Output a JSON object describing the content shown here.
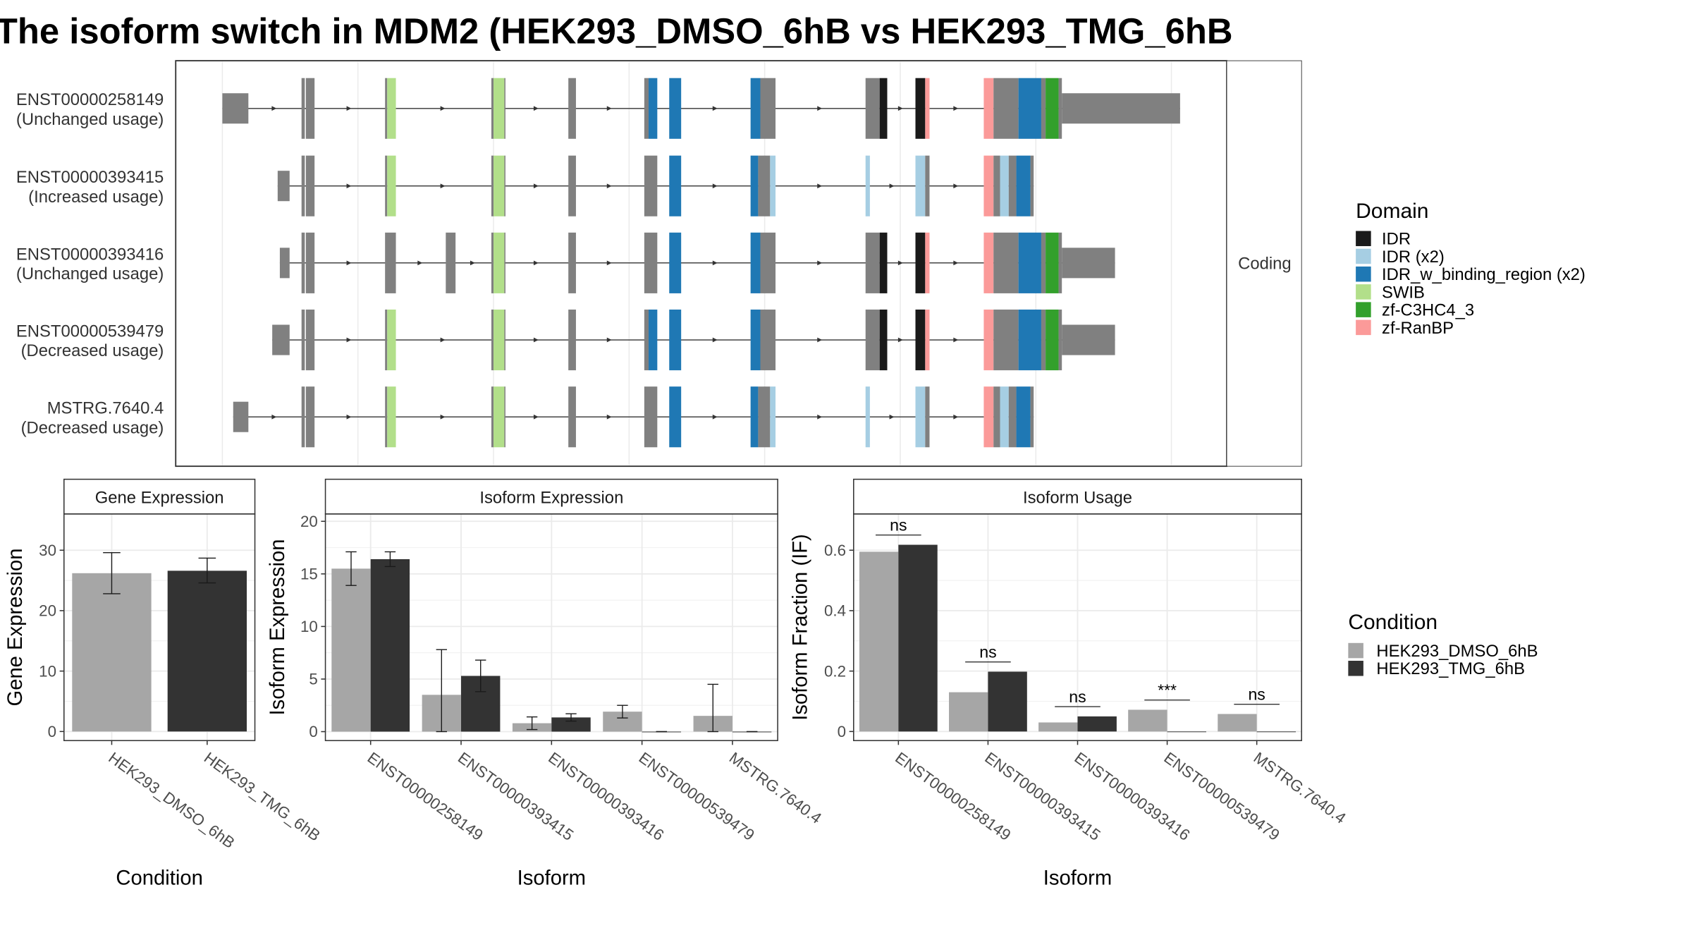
{
  "title": "The isoform switch in MDM2 (HEK293_DMSO_6hB vs HEK293_TMG_6hB",
  "colors": {
    "exon_noncoding": "#808080",
    "cond1": "#a6a6a6",
    "cond2": "#333333",
    "grid": "#ebebeb",
    "panel_border": "#333333"
  },
  "domain_legend": {
    "title": "Domain",
    "items": [
      {
        "label": "IDR",
        "color": "#1a1a1a"
      },
      {
        "label": "IDR (x2)",
        "color": "#a6cee3"
      },
      {
        "label": "IDR_w_binding_region (x2)",
        "color": "#1f78b4"
      },
      {
        "label": "SWIB",
        "color": "#b2df8a"
      },
      {
        "label": "zf-C3HC4_3",
        "color": "#33a02c"
      },
      {
        "label": "zf-RanBP",
        "color": "#fb9a99"
      }
    ]
  },
  "condition_legend": {
    "title": "Condition",
    "items": [
      {
        "label": "HEK293_DMSO_6hB",
        "color": "#a6a6a6"
      },
      {
        "label": "HEK293_TMG_6hB",
        "color": "#333333"
      }
    ]
  },
  "structure": {
    "strip_label": "Coding",
    "transcripts": [
      {
        "id": "ENST00000258149",
        "usage": "(Unchanged usage)",
        "exons": [
          [
            205,
            229,
            "n"
          ],
          [
            278,
            281,
            "n"
          ],
          [
            282,
            290,
            "n"
          ],
          [
            355,
            357,
            "n"
          ],
          [
            357,
            365,
            "S"
          ],
          [
            453,
            455,
            "n"
          ],
          [
            455,
            465,
            "S"
          ],
          [
            465,
            466,
            "n"
          ],
          [
            524,
            531,
            "n"
          ],
          [
            594,
            598,
            "n"
          ],
          [
            598,
            606,
            "B"
          ],
          [
            617,
            628,
            "B"
          ],
          [
            692,
            701,
            "B"
          ],
          [
            701,
            715,
            "n"
          ],
          [
            798,
            811,
            "n"
          ],
          [
            811,
            818,
            "I"
          ],
          [
            844,
            853,
            "I"
          ],
          [
            853,
            857,
            "R"
          ],
          [
            907,
            916,
            "R"
          ],
          [
            916,
            939,
            "n"
          ],
          [
            939,
            960,
            "B"
          ],
          [
            960,
            964,
            "n"
          ],
          [
            964,
            976,
            "G"
          ],
          [
            976,
            979,
            "n"
          ],
          [
            979,
            1088,
            "n"
          ]
        ]
      },
      {
        "id": "ENST00000393415",
        "usage": "(Increased usage)",
        "exons": [
          [
            256,
            267,
            "n"
          ],
          [
            278,
            281,
            "n"
          ],
          [
            282,
            290,
            "n"
          ],
          [
            355,
            357,
            "n"
          ],
          [
            357,
            365,
            "S"
          ],
          [
            453,
            455,
            "n"
          ],
          [
            455,
            465,
            "S"
          ],
          [
            465,
            466,
            "n"
          ],
          [
            524,
            531,
            "n"
          ],
          [
            594,
            606,
            "n"
          ],
          [
            617,
            628,
            "B"
          ],
          [
            692,
            699,
            "B"
          ],
          [
            699,
            710,
            "n"
          ],
          [
            710,
            715,
            "L"
          ],
          [
            798,
            802,
            "L"
          ],
          [
            844,
            853,
            "L"
          ],
          [
            853,
            857,
            "n"
          ],
          [
            907,
            916,
            "R"
          ],
          [
            916,
            922,
            "n"
          ],
          [
            922,
            930,
            "L"
          ],
          [
            930,
            937,
            "n"
          ],
          [
            937,
            950,
            "B"
          ],
          [
            950,
            953,
            "n"
          ]
        ]
      },
      {
        "id": "ENST00000393416",
        "usage": "(Unchanged usage)",
        "exons": [
          [
            258,
            267,
            "n"
          ],
          [
            278,
            281,
            "n"
          ],
          [
            282,
            290,
            "n"
          ],
          [
            355,
            365,
            "n"
          ],
          [
            411,
            420,
            "n"
          ],
          [
            453,
            455,
            "n"
          ],
          [
            455,
            465,
            "S"
          ],
          [
            465,
            466,
            "n"
          ],
          [
            524,
            531,
            "n"
          ],
          [
            594,
            606,
            "n"
          ],
          [
            617,
            628,
            "B"
          ],
          [
            692,
            701,
            "B"
          ],
          [
            701,
            715,
            "n"
          ],
          [
            798,
            811,
            "n"
          ],
          [
            811,
            818,
            "I"
          ],
          [
            844,
            853,
            "I"
          ],
          [
            853,
            857,
            "R"
          ],
          [
            907,
            916,
            "R"
          ],
          [
            916,
            939,
            "n"
          ],
          [
            939,
            960,
            "B"
          ],
          [
            960,
            964,
            "n"
          ],
          [
            964,
            976,
            "G"
          ],
          [
            976,
            979,
            "n"
          ],
          [
            979,
            1028,
            "n"
          ]
        ]
      },
      {
        "id": "ENST00000539479",
        "usage": "(Decreased usage)",
        "exons": [
          [
            251,
            267,
            "n"
          ],
          [
            278,
            281,
            "n"
          ],
          [
            282,
            290,
            "n"
          ],
          [
            355,
            357,
            "n"
          ],
          [
            357,
            365,
            "S"
          ],
          [
            453,
            455,
            "n"
          ],
          [
            455,
            465,
            "S"
          ],
          [
            465,
            466,
            "n"
          ],
          [
            524,
            531,
            "n"
          ],
          [
            594,
            598,
            "n"
          ],
          [
            598,
            606,
            "B"
          ],
          [
            617,
            628,
            "B"
          ],
          [
            692,
            701,
            "B"
          ],
          [
            701,
            715,
            "n"
          ],
          [
            798,
            811,
            "n"
          ],
          [
            811,
            818,
            "I"
          ],
          [
            844,
            853,
            "I"
          ],
          [
            853,
            857,
            "R"
          ],
          [
            907,
            916,
            "R"
          ],
          [
            916,
            939,
            "n"
          ],
          [
            939,
            960,
            "B"
          ],
          [
            960,
            964,
            "n"
          ],
          [
            964,
            976,
            "G"
          ],
          [
            976,
            979,
            "n"
          ],
          [
            979,
            1028,
            "n"
          ]
        ]
      },
      {
        "id": "MSTRG.7640.4",
        "usage": "(Decreased usage)",
        "exons": [
          [
            215,
            229,
            "n"
          ],
          [
            278,
            281,
            "n"
          ],
          [
            282,
            290,
            "n"
          ],
          [
            355,
            357,
            "n"
          ],
          [
            357,
            365,
            "S"
          ],
          [
            453,
            455,
            "n"
          ],
          [
            455,
            465,
            "S"
          ],
          [
            465,
            466,
            "n"
          ],
          [
            524,
            531,
            "n"
          ],
          [
            594,
            606,
            "n"
          ],
          [
            617,
            628,
            "B"
          ],
          [
            692,
            699,
            "B"
          ],
          [
            699,
            710,
            "n"
          ],
          [
            710,
            715,
            "L"
          ],
          [
            798,
            802,
            "L"
          ],
          [
            844,
            853,
            "L"
          ],
          [
            853,
            857,
            "n"
          ],
          [
            907,
            916,
            "R"
          ],
          [
            916,
            922,
            "n"
          ],
          [
            922,
            930,
            "L"
          ],
          [
            930,
            937,
            "n"
          ],
          [
            937,
            950,
            "B"
          ],
          [
            950,
            953,
            "n"
          ]
        ]
      }
    ]
  },
  "chart_data": [
    {
      "type": "bar",
      "panel": "Gene Expression",
      "categories": [
        "HEK293_DMSO_6hB",
        "HEK293_TMG_6hB"
      ],
      "values": [
        26.2,
        26.6
      ],
      "errors": [
        [
          22.8,
          29.6
        ],
        [
          24.6,
          28.7
        ]
      ],
      "xlabel": "Condition",
      "ylabel": "Gene Expression",
      "ylim": [
        -1.5,
        36
      ],
      "yticks": [
        0,
        10,
        20,
        30
      ]
    },
    {
      "type": "bar",
      "panel": "Isoform Expression",
      "categories": [
        "ENST00000258149",
        "ENST00000393415",
        "ENST00000393416",
        "ENST00000539479",
        "MSTRG.7640.4"
      ],
      "series": [
        {
          "name": "HEK293_DMSO_6hB",
          "values": [
            15.5,
            3.5,
            0.8,
            1.9,
            1.5
          ],
          "errors": [
            [
              13.9,
              17.1
            ],
            [
              0,
              7.8
            ],
            [
              0.2,
              1.4
            ],
            [
              1.3,
              2.5
            ],
            [
              0,
              4.5
            ]
          ]
        },
        {
          "name": "HEK293_TMG_6hB",
          "values": [
            16.4,
            5.3,
            1.35,
            0,
            0
          ],
          "errors": [
            [
              15.7,
              17.1
            ],
            [
              3.8,
              6.8
            ],
            [
              1.0,
              1.7
            ],
            [
              0,
              0
            ],
            [
              0,
              0
            ]
          ]
        }
      ],
      "xlabel": "Isoform",
      "ylabel": "Isoform Expression",
      "ylim": [
        -0.85,
        20.7
      ],
      "yticks": [
        0,
        5,
        10,
        15,
        20
      ]
    },
    {
      "type": "bar",
      "panel": "Isoform Usage",
      "categories": [
        "ENST00000258149",
        "ENST00000393415",
        "ENST00000393416",
        "ENST00000539479",
        "MSTRG.7640.4"
      ],
      "series": [
        {
          "name": "HEK293_DMSO_6hB",
          "values": [
            0.595,
            0.13,
            0.03,
            0.072,
            0.058
          ]
        },
        {
          "name": "HEK293_TMG_6hB",
          "values": [
            0.618,
            0.198,
            0.05,
            0,
            0
          ]
        }
      ],
      "significance": [
        "ns",
        "ns",
        "ns",
        "***",
        "ns"
      ],
      "xlabel": "Isoform",
      "ylabel": "Isoform Fraction (IF)",
      "ylim": [
        -0.03,
        0.72
      ],
      "yticks": [
        0.0,
        0.2,
        0.4,
        0.6
      ]
    }
  ]
}
